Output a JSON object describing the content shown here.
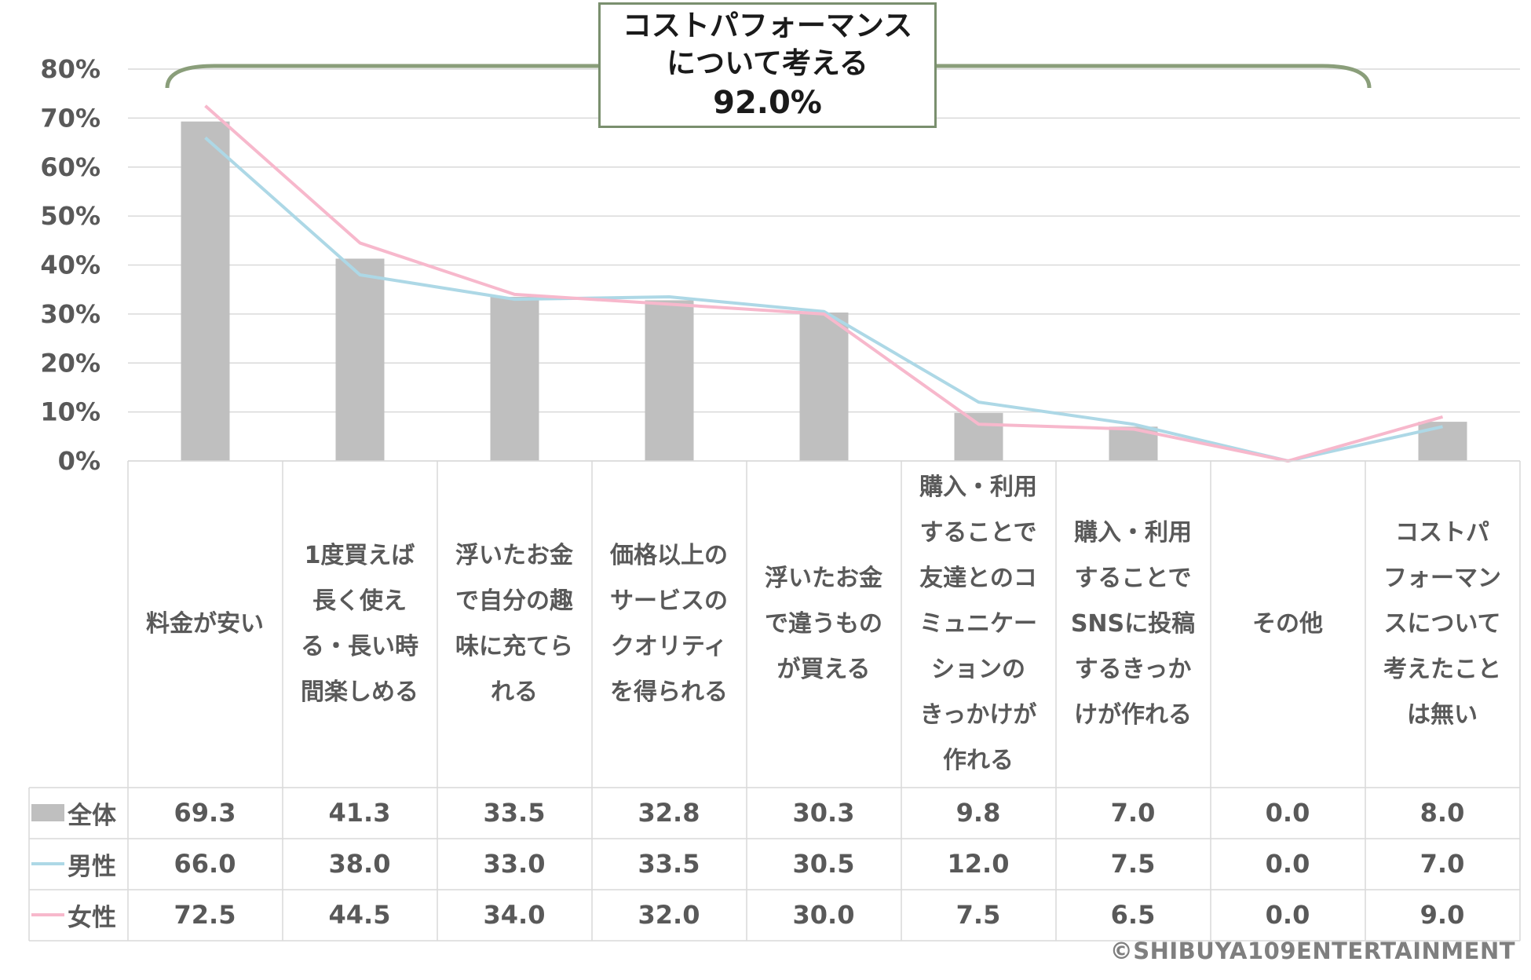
{
  "callout": {
    "line1": "コストパフォーマンス",
    "line2": "について考える",
    "value": "92.0%"
  },
  "copyright": "©SHIBUYA109ENTERTAINMENT",
  "colors": {
    "all": "#bfbfbf",
    "male": "#add8e6",
    "female": "#f7b8cc",
    "bracket": "#8a9e7a",
    "grid": "#d9d9d9"
  },
  "chart_data": {
    "type": "bar",
    "categories": [
      "料金が安い",
      "1度買えば\n長く使え\nる・長い時\n間楽しめる",
      "浮いたお金\nで自分の趣\n味に充てら\nれる",
      "価格以上の\nサービスの\nクオリティ\nを得られる",
      "浮いたお金\nで違うもの\nが買える",
      "購入・利用\nすることで\n友達とのコ\nミュニケー\nションの\nきっかけが\n作れる",
      "購入・利用\nすることで\nSNSに投稿\nするきっか\nけが作れる",
      "その他",
      "コストパ\nフォーマン\nスについて\n考えたこと\nは無い"
    ],
    "series": [
      {
        "name": "全体",
        "kind": "bar",
        "values": [
          69.3,
          41.3,
          33.5,
          32.8,
          30.3,
          9.8,
          7.0,
          0.0,
          8.0
        ],
        "labels": [
          "69.3",
          "41.3",
          "33.5",
          "32.8",
          "30.3",
          "9.8",
          "7.0",
          "0.0",
          "8.0"
        ]
      },
      {
        "name": "男性",
        "kind": "line",
        "values": [
          66.0,
          38.0,
          33.0,
          33.5,
          30.5,
          12.0,
          7.5,
          0.0,
          7.0
        ],
        "labels": [
          "66.0",
          "38.0",
          "33.0",
          "33.5",
          "30.5",
          "12.0",
          "7.5",
          "0.0",
          "7.0"
        ]
      },
      {
        "name": "女性",
        "kind": "line",
        "values": [
          72.5,
          44.5,
          34.0,
          32.0,
          30.0,
          7.5,
          6.5,
          0.0,
          9.0
        ],
        "labels": [
          "72.5",
          "44.5",
          "34.0",
          "32.0",
          "30.0",
          "7.5",
          "6.5",
          "0.0",
          "9.0"
        ]
      }
    ],
    "y_ticks": [
      "0%",
      "10%",
      "20%",
      "30%",
      "40%",
      "50%",
      "60%",
      "70%",
      "80%"
    ],
    "ylim": [
      0,
      80
    ],
    "grid": true,
    "legend": "data-table"
  }
}
